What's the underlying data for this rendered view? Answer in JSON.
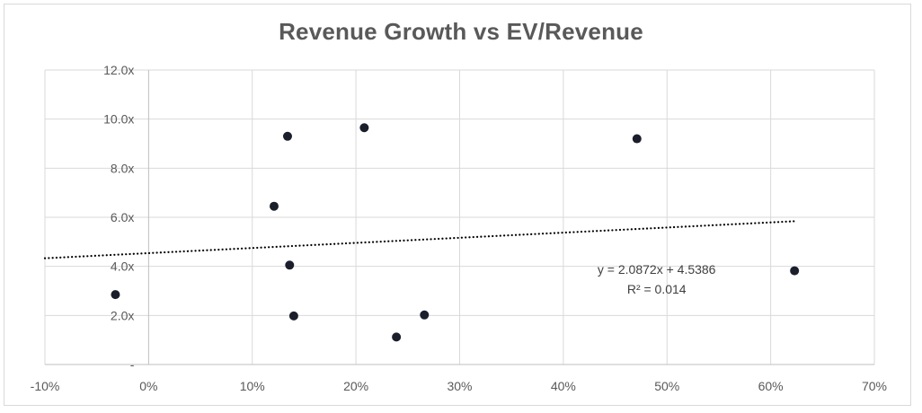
{
  "chart_data": {
    "type": "scatter",
    "title": "Revenue Growth vs EV/Revenue",
    "xlabel": "",
    "ylabel": "",
    "xlim": [
      -0.1,
      0.7
    ],
    "ylim": [
      0,
      12
    ],
    "x_ticks": [
      {
        "value": -0.1,
        "label": "-10%"
      },
      {
        "value": 0.0,
        "label": "0%"
      },
      {
        "value": 0.1,
        "label": "10%"
      },
      {
        "value": 0.2,
        "label": "20%"
      },
      {
        "value": 0.3,
        "label": "30%"
      },
      {
        "value": 0.4,
        "label": "40%"
      },
      {
        "value": 0.5,
        "label": "50%"
      },
      {
        "value": 0.6,
        "label": "60%"
      },
      {
        "value": 0.7,
        "label": "70%"
      }
    ],
    "y_ticks": [
      {
        "value": 0,
        "label": "-"
      },
      {
        "value": 2,
        "label": "2.0x"
      },
      {
        "value": 4,
        "label": "4.0x"
      },
      {
        "value": 6,
        "label": "6.0x"
      },
      {
        "value": 8,
        "label": "8.0x"
      },
      {
        "value": 10,
        "label": "10.0x"
      },
      {
        "value": 12,
        "label": "12.0x"
      }
    ],
    "grid": true,
    "points": [
      {
        "x": -0.032,
        "y": 2.85
      },
      {
        "x": 0.121,
        "y": 6.45
      },
      {
        "x": 0.134,
        "y": 9.3
      },
      {
        "x": 0.136,
        "y": 4.05
      },
      {
        "x": 0.14,
        "y": 1.98
      },
      {
        "x": 0.208,
        "y": 9.65
      },
      {
        "x": 0.239,
        "y": 1.12
      },
      {
        "x": 0.266,
        "y": 2.02
      },
      {
        "x": 0.471,
        "y": 9.2
      },
      {
        "x": 0.623,
        "y": 3.82
      }
    ],
    "trendline": {
      "type": "linear",
      "slope": 2.0872,
      "intercept": 4.5386,
      "x_range": [
        -0.1,
        0.625
      ],
      "equation_label": "y = 2.0872x + 4.5386",
      "r2_label": "R² = 0.014"
    },
    "colors": {
      "marker": "#1b1e2b",
      "trendline": "#000000",
      "grid": "#d9d9d9",
      "axis": "#bfbfbf",
      "title": "#595959",
      "tick_text": "#595959"
    }
  }
}
